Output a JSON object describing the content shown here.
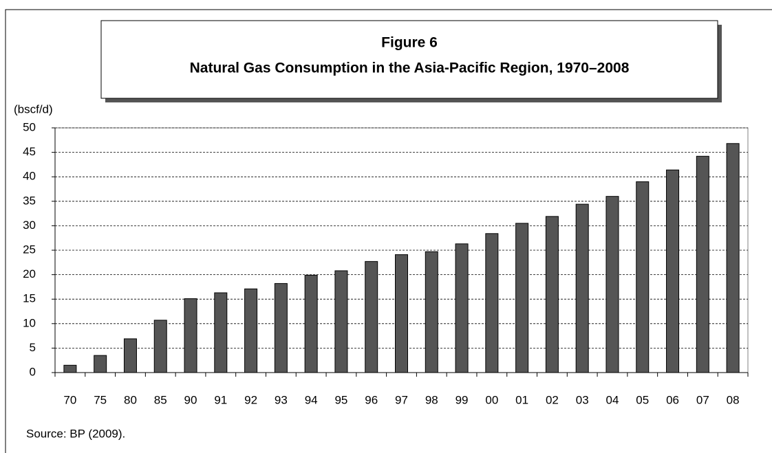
{
  "chart_data": {
    "type": "bar",
    "title": "Figure 6",
    "subtitle": "Natural Gas Consumption in the Asia-Pacific Region, 1970–2008",
    "y_label": "(bscf/d)",
    "source": "Source: BP (2009).",
    "categories": [
      "70",
      "75",
      "80",
      "85",
      "90",
      "91",
      "92",
      "93",
      "94",
      "95",
      "96",
      "97",
      "98",
      "99",
      "00",
      "01",
      "02",
      "03",
      "04",
      "05",
      "06",
      "07",
      "08"
    ],
    "values": [
      1.5,
      3.5,
      6.9,
      10.7,
      15.1,
      16.3,
      17.1,
      18.2,
      19.9,
      20.8,
      22.7,
      24.1,
      24.7,
      26.3,
      28.4,
      30.5,
      31.9,
      34.4,
      36.0,
      39.0,
      41.4,
      44.2,
      46.8
    ],
    "color": "#555555",
    "ylim": [
      0,
      50
    ],
    "yticks": [
      0,
      5,
      10,
      15,
      20,
      25,
      30,
      35,
      40,
      45,
      50
    ],
    "grid": true
  }
}
